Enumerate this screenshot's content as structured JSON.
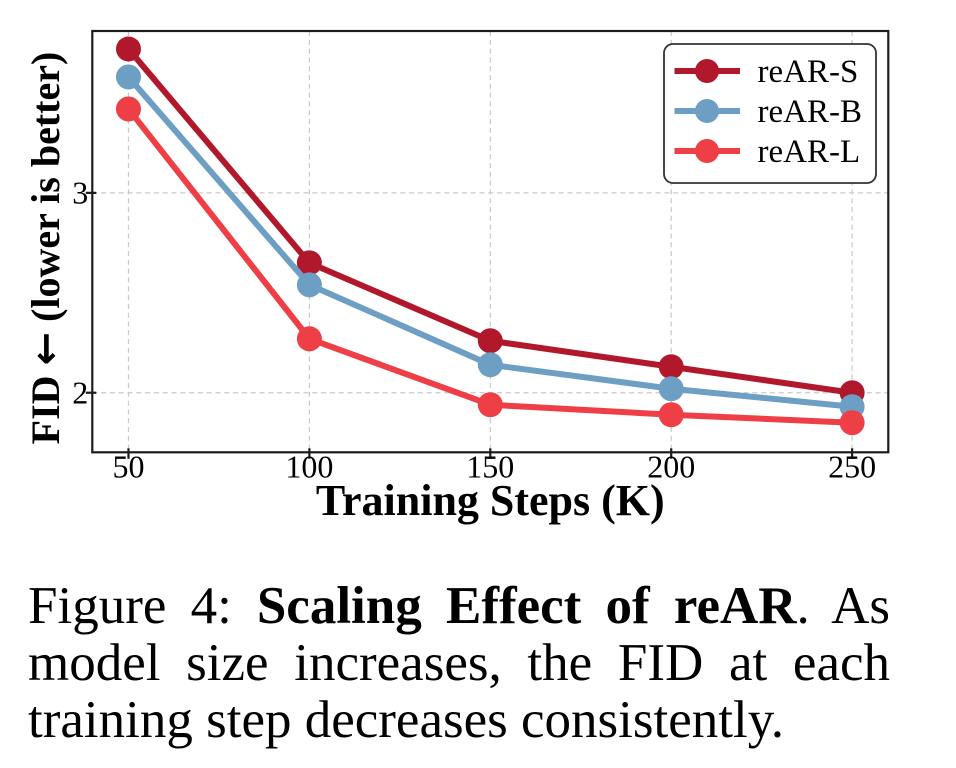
{
  "figure": {
    "type": "paper-figure-with-caption",
    "background": "#ffffff"
  },
  "chart_data": {
    "type": "line",
    "title": "",
    "xlabel": "Training Steps (K)",
    "ylabel": "FID ← (lower is better)",
    "x": [
      50,
      100,
      150,
      200,
      250
    ],
    "series": [
      {
        "name": "reAR-S",
        "color": "#b2182b",
        "values": [
          3.72,
          2.65,
          2.26,
          2.13,
          2.0
        ]
      },
      {
        "name": "reAR-B",
        "color": "#6d9ec3",
        "values": [
          3.58,
          2.54,
          2.14,
          2.02,
          1.93
        ]
      },
      {
        "name": "reAR-L",
        "color": "#ee3e46",
        "values": [
          3.42,
          2.27,
          1.94,
          1.89,
          1.85
        ]
      }
    ],
    "xlim": [
      40,
      260
    ],
    "ylim": [
      1.702,
      3.81
    ],
    "xticks": [
      50,
      100,
      150,
      200,
      250
    ],
    "yticks": [
      2,
      3
    ],
    "grid": true,
    "grid_style": "dashed",
    "legend_position": "upper right",
    "legend_labels": [
      "reAR-S",
      "reAR-B",
      "reAR-L"
    ]
  },
  "style": {
    "grid_color": "#c9c9c9",
    "spine_color": "#1c1c1c",
    "text_color": "#000000",
    "legend_border_color": "#333333",
    "legend_fill": "#ffffff"
  },
  "caption": {
    "label": "Figure 4:",
    "title_bold": "Scaling Effect of reAR",
    "after_title": ". As",
    "line2": "model size increases, the FID at each",
    "line3": "training step decreases consistently."
  }
}
